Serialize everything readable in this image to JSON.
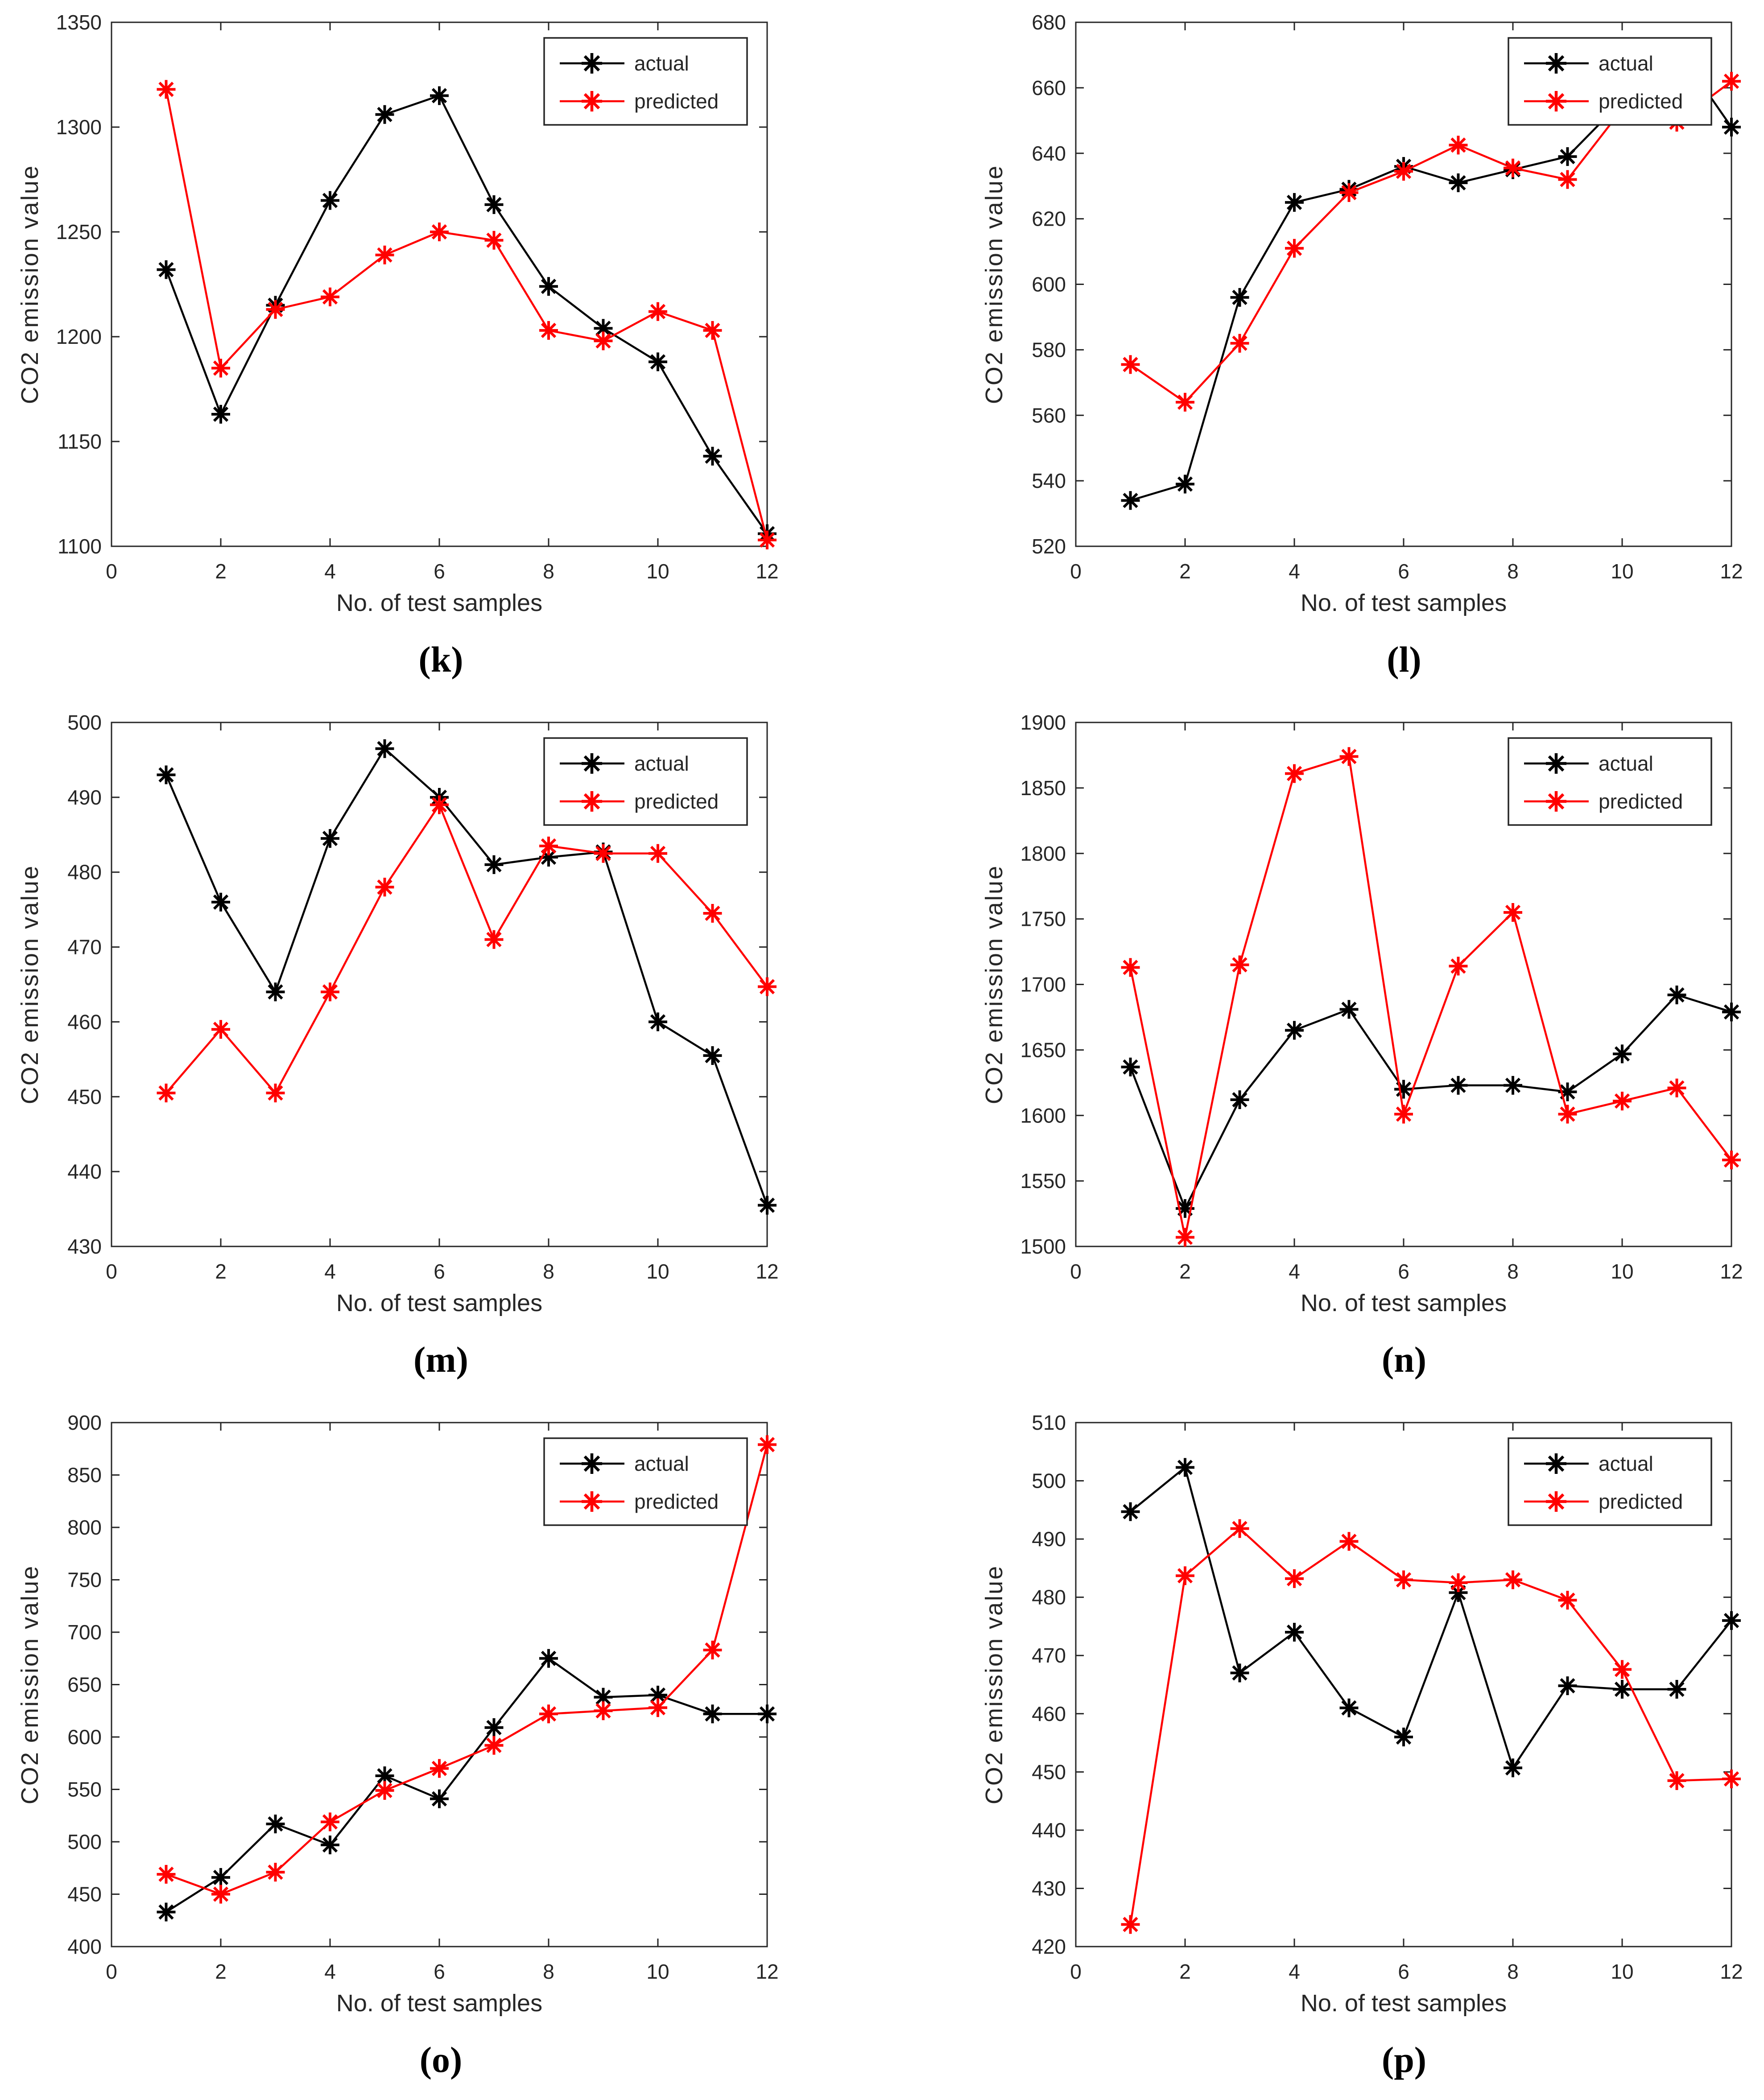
{
  "style": {
    "background": "#ffffff",
    "axis_color": "#262626",
    "text_color": "#262626",
    "actual_color": "#000000",
    "predicted_color": "#ff0000",
    "marker": "asterisk",
    "legend_border_color": "#262626",
    "legend_background": "#ffffff"
  },
  "legend": {
    "items": [
      "actual",
      "predicted"
    ],
    "position": "top-right"
  },
  "chart_data": [
    {
      "id": "k",
      "caption": "(k)",
      "type": "line",
      "title": "",
      "xlabel": "No. of test samples",
      "ylabel": "CO2 emission value",
      "xlim": [
        0,
        12
      ],
      "xticks": [
        0,
        2,
        4,
        6,
        8,
        10,
        12
      ],
      "ylim": [
        1100,
        1350
      ],
      "ytick_step": 50,
      "grid": false,
      "legend_position": "top-right",
      "x": [
        1,
        2,
        3,
        4,
        5,
        6,
        7,
        8,
        9,
        10,
        11,
        12
      ],
      "series": [
        {
          "name": "actual",
          "color": "#000000",
          "values": [
            1232,
            1163,
            1215,
            1265,
            1306,
            1315,
            1263,
            1224,
            1204,
            1188,
            1143,
            1106
          ]
        },
        {
          "name": "predicted",
          "color": "#ff0000",
          "values": [
            1318,
            1185,
            1213,
            1219,
            1239,
            1250,
            1246,
            1203,
            1198,
            1212,
            1203,
            1103
          ]
        }
      ]
    },
    {
      "id": "l",
      "caption": "(l)",
      "type": "line",
      "title": "",
      "xlabel": "No. of test samples",
      "ylabel": "CO2 emission value",
      "xlim": [
        0,
        12
      ],
      "xticks": [
        0,
        2,
        4,
        6,
        8,
        10,
        12
      ],
      "ylim": [
        520,
        680
      ],
      "ytick_step": 20,
      "grid": false,
      "legend_position": "top-right",
      "x": [
        1,
        2,
        3,
        4,
        5,
        6,
        7,
        8,
        9,
        10,
        11,
        12
      ],
      "series": [
        {
          "name": "actual",
          "color": "#000000",
          "values": [
            534,
            539,
            596,
            625,
            629,
            636,
            631,
            635,
            639,
            656,
            672,
            648
          ]
        },
        {
          "name": "predicted",
          "color": "#ff0000",
          "values": [
            575.5,
            564,
            582,
            611,
            628,
            634.5,
            642.5,
            635.5,
            632,
            653.5,
            649.5,
            662
          ]
        }
      ]
    },
    {
      "id": "m",
      "caption": "(m)",
      "type": "line",
      "title": "",
      "xlabel": "No. of test samples",
      "ylabel": "CO2 emission value",
      "xlim": [
        0,
        12
      ],
      "xticks": [
        0,
        2,
        4,
        6,
        8,
        10,
        12
      ],
      "ylim": [
        430,
        500
      ],
      "ytick_step": 10,
      "grid": false,
      "legend_position": "top-right",
      "x": [
        1,
        2,
        3,
        4,
        5,
        6,
        7,
        8,
        9,
        10,
        11,
        12
      ],
      "series": [
        {
          "name": "actual",
          "color": "#000000",
          "values": [
            493,
            476,
            464,
            484.5,
            496.5,
            490,
            481,
            482,
            482.7,
            460,
            455.5,
            435.5
          ]
        },
        {
          "name": "predicted",
          "color": "#ff0000",
          "values": [
            450.5,
            459,
            450.5,
            464,
            478,
            489,
            471,
            483.5,
            482.5,
            482.5,
            474.5,
            464.7
          ]
        }
      ]
    },
    {
      "id": "n",
      "caption": "(n)",
      "type": "line",
      "title": "",
      "xlabel": "No. of test samples",
      "ylabel": "CO2 emission value",
      "xlim": [
        0,
        12
      ],
      "xticks": [
        0,
        2,
        4,
        6,
        8,
        10,
        12
      ],
      "ylim": [
        1500,
        1900
      ],
      "ytick_step": 50,
      "grid": false,
      "legend_position": "top-right",
      "x": [
        1,
        2,
        3,
        4,
        5,
        6,
        7,
        8,
        9,
        10,
        11,
        12
      ],
      "series": [
        {
          "name": "actual",
          "color": "#000000",
          "values": [
            1637,
            1529,
            1612,
            1665,
            1681,
            1620,
            1623,
            1623,
            1618,
            1647,
            1692,
            1679
          ]
        },
        {
          "name": "predicted",
          "color": "#ff0000",
          "values": [
            1713,
            1507,
            1715,
            1861,
            1874,
            1601,
            1714,
            1755,
            1601,
            1611,
            1621,
            1566
          ]
        }
      ]
    },
    {
      "id": "o",
      "caption": "(o)",
      "type": "line",
      "title": "",
      "xlabel": "No. of test samples",
      "ylabel": "CO2 emission value",
      "xlim": [
        0,
        12
      ],
      "xticks": [
        0,
        2,
        4,
        6,
        8,
        10,
        12
      ],
      "ylim": [
        400,
        900
      ],
      "ytick_step": 50,
      "grid": false,
      "legend_position": "top-right",
      "x": [
        1,
        2,
        3,
        4,
        5,
        6,
        7,
        8,
        9,
        10,
        11,
        12
      ],
      "series": [
        {
          "name": "actual",
          "color": "#000000",
          "values": [
            433,
            466,
            517,
            497,
            563,
            541,
            609,
            675,
            638,
            640,
            622,
            622
          ]
        },
        {
          "name": "predicted",
          "color": "#ff0000",
          "values": [
            469,
            450,
            471,
            519,
            549,
            570,
            592,
            622,
            625,
            628,
            683,
            879
          ]
        }
      ]
    },
    {
      "id": "p",
      "caption": "(p)",
      "type": "line",
      "title": "",
      "xlabel": "No. of test samples",
      "ylabel": "CO2 emission value",
      "xlim": [
        0,
        12
      ],
      "xticks": [
        0,
        2,
        4,
        6,
        8,
        10,
        12
      ],
      "ylim": [
        420,
        510
      ],
      "ytick_step": 10,
      "grid": false,
      "legend_position": "top-right",
      "x": [
        1,
        2,
        3,
        4,
        5,
        6,
        7,
        8,
        9,
        10,
        11,
        12
      ],
      "series": [
        {
          "name": "actual",
          "color": "#000000",
          "values": [
            494.7,
            502.3,
            467,
            474,
            461,
            456,
            480.8,
            450.7,
            464.8,
            464.2,
            464.2,
            476
          ]
        },
        {
          "name": "predicted",
          "color": "#ff0000",
          "values": [
            423.8,
            483.7,
            491.8,
            483.2,
            489.6,
            483,
            482.5,
            483,
            479.5,
            467.6,
            448.5,
            448.8
          ]
        }
      ]
    }
  ]
}
